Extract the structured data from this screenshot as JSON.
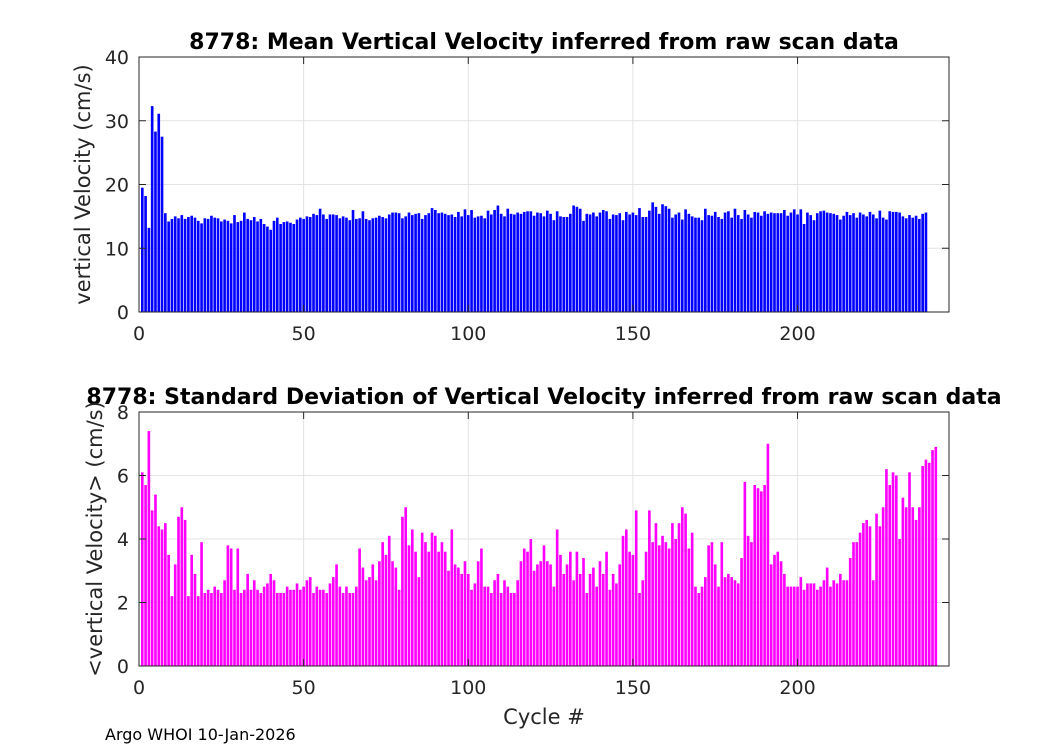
{
  "chart_data": [
    {
      "type": "bar",
      "title": "8778: Mean Vertical Velocity inferred from raw scan data",
      "xlabel": "",
      "ylabel": "vertical Velocity (cm/s)",
      "xlim": [
        0,
        246
      ],
      "ylim": [
        0,
        40
      ],
      "xticks": [
        0,
        50,
        100,
        150,
        200
      ],
      "yticks": [
        0,
        10,
        20,
        30,
        40
      ],
      "grid": true,
      "color": "#0000ff",
      "values": [
        19.5,
        18.2,
        13.2,
        32.3,
        28.3,
        31.1,
        27.5,
        15.5,
        14.2,
        14.6,
        15.0,
        14.7,
        15.2,
        14.6,
        14.9,
        15.1,
        14.8,
        14.3,
        13.9,
        14.7,
        14.6,
        15.1,
        14.8,
        14.7,
        14.2,
        14.5,
        14.3,
        13.9,
        15.2,
        14.1,
        14.3,
        15.6,
        14.6,
        14.4,
        14.9,
        14.2,
        14.6,
        13.8,
        13.4,
        12.9,
        14.3,
        14.8,
        13.8,
        14.1,
        14.2,
        14.0,
        13.8,
        14.5,
        14.8,
        14.6,
        15.0,
        14.9,
        15.4,
        15.2,
        16.2,
        15.3,
        14.6,
        15.3,
        15.3,
        15.2,
        14.7,
        15.0,
        14.8,
        14.4,
        16.0,
        14.6,
        14.7,
        15.8,
        14.6,
        14.4,
        14.7,
        14.8,
        15.1,
        14.9,
        14.7,
        15.3,
        15.6,
        15.6,
        15.5,
        14.7,
        15.0,
        15.6,
        15.2,
        15.4,
        15.5,
        14.6,
        15.2,
        15.5,
        16.3,
        16.0,
        15.5,
        15.6,
        15.4,
        15.2,
        15.3,
        14.9,
        15.7,
        15.0,
        16.1,
        15.2,
        16.0,
        14.8,
        15.0,
        15.1,
        14.7,
        15.9,
        15.3,
        16.0,
        16.7,
        15.4,
        15.0,
        16.2,
        15.4,
        15.3,
        15.6,
        15.4,
        15.7,
        15.8,
        15.8,
        15.1,
        15.6,
        15.5,
        15.0,
        15.9,
        15.4,
        14.4,
        15.8,
        15.0,
        14.9,
        14.9,
        15.4,
        16.7,
        16.5,
        16.2,
        14.3,
        15.4,
        15.3,
        15.6,
        15.0,
        15.6,
        16.0,
        15.8,
        14.6,
        15.3,
        15.2,
        15.5,
        14.4,
        15.7,
        15.3,
        15.6,
        15.2,
        16.3,
        14.9,
        14.9,
        15.9,
        17.2,
        16.5,
        15.4,
        16.9,
        16.6,
        16.2,
        14.8,
        15.3,
        15.6,
        14.5,
        16.1,
        15.4,
        15.0,
        14.8,
        14.8,
        14.4,
        16.2,
        15.2,
        15.1,
        15.7,
        14.9,
        14.6,
        15.6,
        15.8,
        14.8,
        16.2,
        15.2,
        14.6,
        16.0,
        15.3,
        14.8,
        15.7,
        15.6,
        15.1,
        15.8,
        15.4,
        15.6,
        15.5,
        15.5,
        15.5,
        16.0,
        15.1,
        15.6,
        16.1,
        15.3,
        16.1,
        13.8,
        15.6,
        15.2,
        14.4,
        15.5,
        15.8,
        15.9,
        15.6,
        15.5,
        15.4,
        15.2,
        14.5,
        15.1,
        15.7,
        15.2,
        15.5,
        14.8,
        15.6,
        15.3,
        15.0,
        15.7,
        15.3,
        14.7,
        15.9,
        14.8,
        14.5,
        15.8,
        15.7,
        15.7,
        15.6,
        15.0,
        14.7,
        15.2,
        14.8,
        15.1,
        14.6,
        15.4,
        15.6
      ]
    },
    {
      "type": "bar",
      "title": "8778: Standard Deviation of Vertical Velocity inferred from raw scan data",
      "xlabel": "Cycle #",
      "ylabel": "<vertical Velocity> (cm/s)",
      "xlim": [
        0,
        246
      ],
      "ylim": [
        0,
        8
      ],
      "xticks": [
        0,
        50,
        100,
        150,
        200
      ],
      "yticks": [
        0,
        2,
        4,
        6,
        8
      ],
      "grid": true,
      "color": "#ff00ff",
      "values": [
        6.1,
        5.7,
        7.4,
        4.9,
        5.4,
        4.4,
        4.3,
        4.5,
        3.5,
        2.2,
        3.2,
        4.7,
        5.0,
        4.6,
        2.2,
        3.5,
        2.9,
        2.2,
        3.9,
        2.3,
        2.4,
        2.3,
        2.5,
        2.4,
        2.3,
        2.7,
        3.8,
        3.7,
        2.4,
        3.7,
        2.3,
        2.4,
        2.9,
        2.4,
        2.7,
        2.4,
        2.3,
        2.5,
        2.6,
        2.9,
        2.7,
        2.3,
        2.3,
        2.3,
        2.5,
        2.4,
        2.4,
        2.6,
        2.4,
        2.5,
        2.7,
        2.8,
        2.3,
        2.5,
        2.4,
        2.4,
        2.3,
        2.6,
        2.8,
        3.2,
        2.5,
        2.3,
        2.5,
        2.3,
        2.3,
        2.5,
        3.7,
        3.1,
        2.7,
        2.8,
        3.2,
        2.7,
        3.3,
        3.9,
        3.5,
        4.1,
        3.3,
        3.1,
        2.4,
        4.7,
        5.0,
        3.8,
        4.3,
        3.6,
        2.8,
        4.2,
        3.9,
        3.6,
        4.2,
        4.1,
        3.6,
        3.9,
        3.6,
        3.0,
        4.3,
        3.2,
        3.1,
        2.9,
        3.3,
        2.9,
        2.4,
        2.6,
        3.3,
        3.7,
        2.5,
        2.5,
        2.3,
        2.7,
        2.9,
        2.3,
        2.7,
        2.5,
        2.3,
        2.3,
        2.7,
        3.3,
        3.7,
        3.6,
        4.0,
        3.0,
        3.2,
        3.3,
        3.8,
        3.3,
        3.2,
        2.5,
        4.3,
        3.5,
        2.9,
        3.2,
        3.6,
        2.7,
        3.6,
        2.9,
        3.4,
        2.3,
        2.9,
        3.1,
        2.5,
        3.3,
        2.9,
        3.6,
        2.4,
        2.9,
        2.6,
        3.2,
        4.1,
        4.3,
        3.6,
        3.5,
        4.9,
        2.3,
        2.7,
        3.6,
        4.9,
        3.9,
        4.5,
        3.8,
        4.1,
        3.9,
        3.7,
        4.5,
        4.0,
        4.5,
        5.0,
        4.8,
        3.7,
        4.2,
        2.5,
        2.3,
        2.5,
        2.8,
        3.8,
        3.9,
        3.2,
        2.5,
        3.9,
        2.8,
        2.9,
        2.8,
        2.7,
        2.6,
        3.4,
        5.8,
        4.1,
        3.9,
        5.7,
        5.6,
        5.5,
        5.7,
        7.0,
        3.2,
        3.5,
        3.6,
        3.3,
        2.9,
        2.5,
        2.5,
        2.5,
        2.5,
        2.8,
        2.4,
        2.6,
        2.6,
        2.6,
        2.4,
        2.5,
        2.7,
        3.1,
        2.5,
        2.7,
        2.6,
        2.9,
        2.7,
        2.7,
        3.4,
        3.9,
        3.9,
        4.2,
        4.5,
        4.6,
        4.4,
        2.7,
        4.8,
        4.4,
        5.0,
        6.2,
        5.7,
        6.1,
        6.0,
        4.0,
        5.3,
        5.0,
        6.1,
        5.0,
        4.6,
        5.0,
        6.3,
        6.5,
        6.4,
        6.8,
        6.9
      ]
    }
  ],
  "footer": "Argo WHOI 10-Jan-2026"
}
